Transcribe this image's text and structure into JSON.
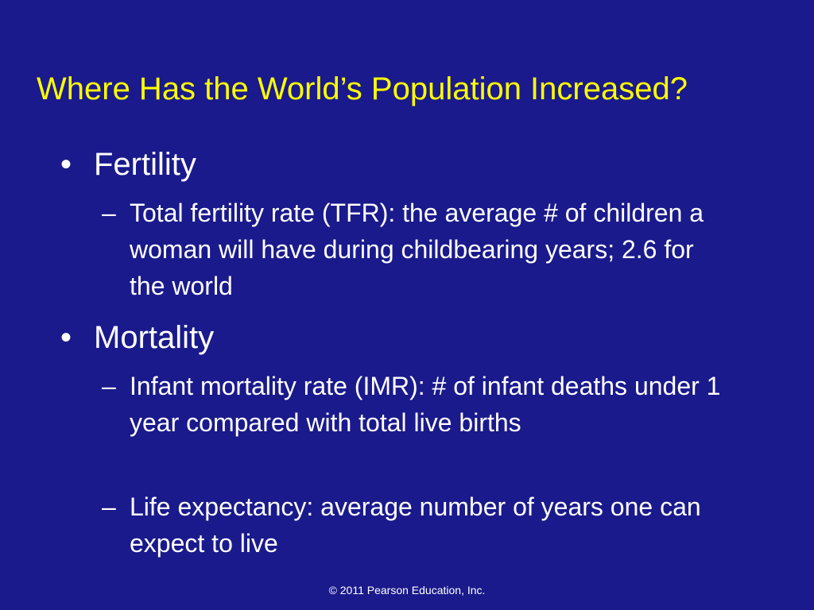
{
  "slide": {
    "title": "Where Has the World’s Population Increased?",
    "bullets": [
      {
        "symbol": "•",
        "label": "Fertility",
        "subpoints": [
          {
            "symbol": "–",
            "text": "Total fertility rate (TFR): the average # of children a woman will have during childbearing years; 2.6 for the world"
          }
        ]
      },
      {
        "symbol": "•",
        "label": "Mortality",
        "subpoints": [
          {
            "symbol": "–",
            "text": "Infant mortality rate (IMR): # of infant deaths under 1 year compared with total live births"
          },
          {
            "symbol": "–",
            "text": "Life expectancy: average number of years one can expect to live"
          }
        ]
      }
    ],
    "footer": "© 2011 Pearson Education, Inc."
  },
  "colors": {
    "background": "#1a1a8c",
    "title": "#ffff00",
    "body_text": "#ffffff"
  }
}
